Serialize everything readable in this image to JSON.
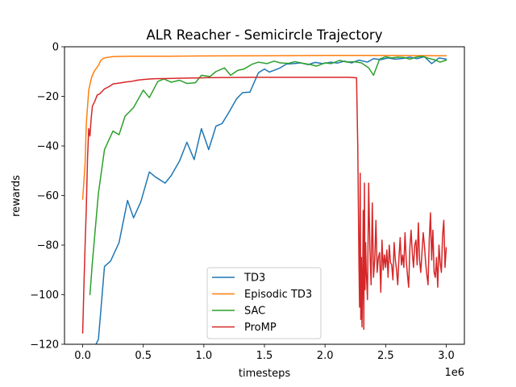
{
  "chart_data": {
    "type": "line",
    "title": "ALR Reacher - Semicircle Trajectory",
    "xlabel": "timesteps",
    "ylabel": "rewards",
    "x_offset_label": "1e6",
    "xlim": [
      -0.15,
      3.15
    ],
    "ylim": [
      -120,
      0
    ],
    "x_ticks": [
      0.0,
      0.5,
      1.0,
      1.5,
      2.0,
      2.5,
      3.0
    ],
    "x_tick_labels": [
      "0.0",
      "0.5",
      "1.0",
      "1.5",
      "2.0",
      "2.5",
      "3.0"
    ],
    "y_ticks": [
      -120,
      -100,
      -80,
      -60,
      -40,
      -20,
      0
    ],
    "y_tick_labels": [
      "−120",
      "−100",
      "−80",
      "−60",
      "−40",
      "−20",
      "0"
    ],
    "grid": false,
    "legend_position": "bottom-center",
    "series": [
      {
        "name": "TD3",
        "color": "#1f77b4",
        "x": [
          0.11,
          0.13,
          0.18,
          0.23,
          0.3,
          0.37,
          0.42,
          0.48,
          0.55,
          0.6,
          0.68,
          0.73,
          0.8,
          0.86,
          0.92,
          0.98,
          1.04,
          1.1,
          1.15,
          1.2,
          1.27,
          1.32,
          1.38,
          1.45,
          1.5,
          1.54,
          1.58,
          1.63,
          1.68,
          1.74,
          1.8,
          1.86,
          1.92,
          1.98,
          2.05,
          2.1,
          2.16,
          2.22,
          2.28,
          2.35,
          2.4,
          2.46,
          2.52,
          2.58,
          2.64,
          2.7,
          2.76,
          2.82,
          2.88,
          2.94,
          3.0
        ],
        "y": [
          -120,
          -118,
          -88.6,
          -86.5,
          -79,
          -62,
          -69,
          -62.5,
          -50.5,
          -52.5,
          -55,
          -52,
          -46,
          -38.5,
          -45.5,
          -33,
          -41.5,
          -32,
          -31,
          -27,
          -21,
          -18.5,
          -18.3,
          -10.5,
          -9,
          -10.2,
          -9.5,
          -8.5,
          -7,
          -6.8,
          -6.5,
          -7.2,
          -6.3,
          -6.8,
          -6.2,
          -6.6,
          -5.8,
          -6.5,
          -5.4,
          -6.2,
          -4.8,
          -5.2,
          -4.5,
          -5.0,
          -4.7,
          -4.2,
          -4.8,
          -4.0,
          -6.8,
          -4.5,
          -5.0
        ]
      },
      {
        "name": "Episodic TD3",
        "color": "#ff7f0e",
        "x": [
          0.0,
          0.02,
          0.03,
          0.05,
          0.07,
          0.08,
          0.1,
          0.12,
          0.13,
          0.15,
          0.17,
          0.2,
          0.25,
          0.3,
          0.4,
          0.5,
          0.7,
          1.0,
          1.5,
          2.0,
          2.5,
          3.0
        ],
        "y": [
          -61.5,
          -47,
          -31,
          -17.5,
          -13,
          -11.5,
          -9.5,
          -8.2,
          -7.5,
          -5.5,
          -4.7,
          -4.3,
          -4.0,
          -3.9,
          -3.8,
          -3.8,
          -3.8,
          -3.7,
          -3.6,
          -3.5,
          -3.5,
          -3.6
        ]
      },
      {
        "name": "SAC",
        "color": "#2ca02c",
        "x": [
          0.06,
          0.08,
          0.13,
          0.18,
          0.25,
          0.3,
          0.35,
          0.42,
          0.5,
          0.55,
          0.62,
          0.67,
          0.73,
          0.8,
          0.86,
          0.93,
          0.98,
          1.05,
          1.1,
          1.17,
          1.22,
          1.28,
          1.33,
          1.4,
          1.45,
          1.52,
          1.58,
          1.63,
          1.7,
          1.75,
          1.8,
          1.88,
          1.93,
          2.0,
          2.05,
          2.12,
          2.18,
          2.24,
          2.3,
          2.36,
          2.4,
          2.45,
          2.5,
          2.55,
          2.6,
          2.65,
          2.7,
          2.75,
          2.8,
          2.85,
          2.9,
          2.95,
          3.0
        ],
        "y": [
          -100,
          -87,
          -59,
          -41.5,
          -34,
          -35.5,
          -28,
          -24.5,
          -17.5,
          -20.5,
          -14,
          -13,
          -14.3,
          -13.5,
          -14.8,
          -14.5,
          -11.5,
          -12,
          -10,
          -8.5,
          -11.5,
          -9.5,
          -9,
          -7,
          -6.2,
          -6.8,
          -5.8,
          -6.5,
          -6.7,
          -6,
          -6.5,
          -7.2,
          -7.8,
          -6.5,
          -6.8,
          -5.5,
          -6.2,
          -6.0,
          -6.5,
          -8.5,
          -11.5,
          -5.0,
          -4.0,
          -4.5,
          -4.2,
          -4.3,
          -5.0,
          -4.2,
          -3.8,
          -4.6,
          -5.2,
          -6.2,
          -5.4
        ]
      },
      {
        "name": "ProMP",
        "color": "#d62728",
        "x": [
          0.0,
          0.01,
          0.02,
          0.03,
          0.04,
          0.05,
          0.06,
          0.07,
          0.08,
          0.1,
          0.12,
          0.14,
          0.16,
          0.18,
          0.2,
          0.22,
          0.25,
          0.28,
          0.32,
          0.36,
          0.4,
          0.45,
          0.5,
          0.55,
          0.6,
          0.7,
          0.8,
          0.9,
          1.0,
          1.2,
          1.4,
          1.6,
          1.8,
          2.0,
          2.1,
          2.2,
          2.26,
          2.27,
          2.28,
          2.285,
          2.29,
          2.295,
          2.3,
          2.305,
          2.31,
          2.315,
          2.32,
          2.325,
          2.33,
          2.335,
          2.34,
          2.35,
          2.36,
          2.37,
          2.38,
          2.39,
          2.4,
          2.41,
          2.42,
          2.43,
          2.44,
          2.45,
          2.46,
          2.47,
          2.48,
          2.49,
          2.5,
          2.51,
          2.52,
          2.53,
          2.54,
          2.55,
          2.56,
          2.57,
          2.58,
          2.59,
          2.6,
          2.61,
          2.62,
          2.63,
          2.64,
          2.65,
          2.66,
          2.67,
          2.68,
          2.69,
          2.7,
          2.71,
          2.72,
          2.73,
          2.74,
          2.75,
          2.76,
          2.77,
          2.78,
          2.79,
          2.8,
          2.81,
          2.82,
          2.83,
          2.84,
          2.85,
          2.86,
          2.87,
          2.88,
          2.89,
          2.9,
          2.91,
          2.92,
          2.93,
          2.94,
          2.95,
          2.96,
          2.97,
          2.98,
          2.99,
          3.0
        ],
        "y": [
          -115.5,
          -97,
          -80,
          -65,
          -45,
          -33,
          -36,
          -29,
          -24,
          -22,
          -19.5,
          -19,
          -18,
          -17,
          -16.5,
          -16,
          -15,
          -14.8,
          -14.5,
          -14.2,
          -14,
          -13.5,
          -13.2,
          -13,
          -12.9,
          -12.8,
          -12.7,
          -12.6,
          -12.5,
          -12.4,
          -12.3,
          -12.3,
          -12.3,
          -12.3,
          -12.3,
          -12.3,
          -12.5,
          -40,
          -88,
          -105,
          -51,
          -110,
          -85,
          -113,
          -95,
          -66,
          -114,
          -55,
          -98,
          -79,
          -90,
          -102,
          -55,
          -81,
          -96,
          -63,
          -93,
          -86,
          -70,
          -91,
          -85,
          -83,
          -99,
          -78,
          -90,
          -84,
          -89,
          -82,
          -93,
          -80,
          -87,
          -88,
          -94,
          -79,
          -86,
          -90,
          -96,
          -85,
          -77,
          -88,
          -84,
          -89,
          -75,
          -86,
          -92,
          -97,
          -81,
          -74,
          -83,
          -89,
          -80,
          -78,
          -88,
          -71,
          -86,
          -91,
          -83,
          -75,
          -80,
          -87,
          -92,
          -96,
          -78,
          -67,
          -86,
          -74,
          -91,
          -93,
          -85,
          -97,
          -80,
          -87,
          -91,
          -76,
          -70,
          -89,
          -81
        ]
      }
    ]
  }
}
